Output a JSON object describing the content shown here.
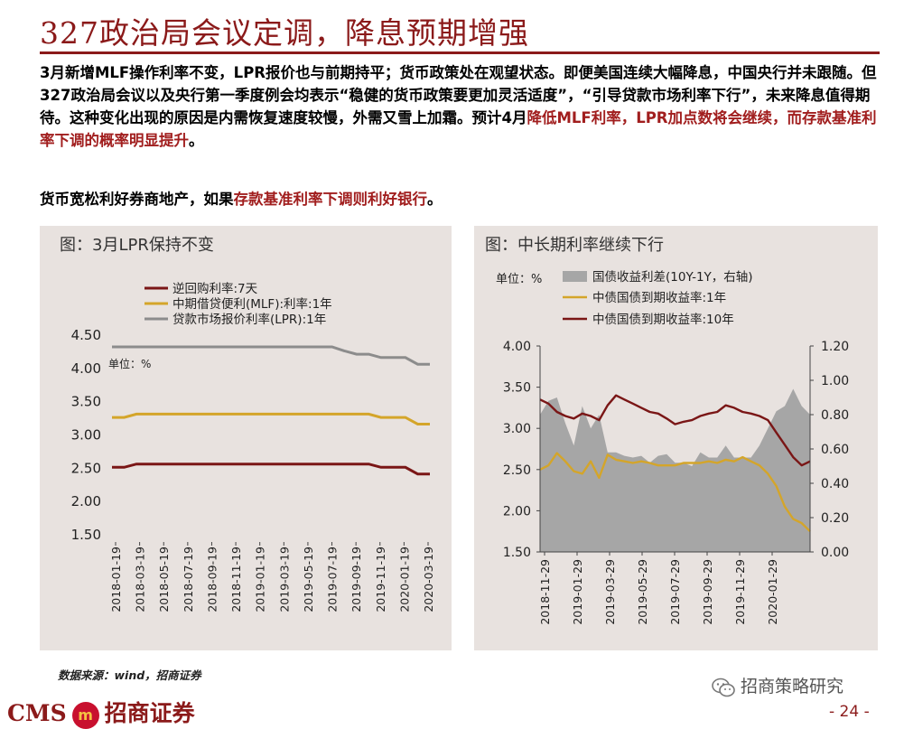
{
  "title": "327政治局会议定调，降息预期增强",
  "paragraph1": [
    {
      "text": "3月新增MLF操作利率不变，LPR报价也与前期持平；货币政策处在观望状态。即便美国连续大幅降息，中国央行并未跟随。但327政治局会议以及央行第一季度例会均表示“稳健的货币政策要更加灵活适度”，“引导贷款市场利率下行”，未来降息值得期待。这种变化出现的原因是内需恢复速度较慢，外需又雪上加霜。预计4月",
      "highlight": false
    },
    {
      "text": "降低MLF利率，LPR加点数将会继续，而存款基准利率下调的概率明显提升",
      "highlight": true
    },
    {
      "text": "。",
      "highlight": false
    }
  ],
  "paragraph2": [
    {
      "text": "货币宽松利好券商地产，如果",
      "highlight": false
    },
    {
      "text": "存款基准利率下调则利好银行",
      "highlight": true
    },
    {
      "text": "。",
      "highlight": false
    }
  ],
  "colors": {
    "dark_red": "#7a1616",
    "gold": "#d4a52a",
    "gray": "#8c8c8c",
    "area": "#a6a6a6",
    "brand": "#8b1a1a"
  },
  "chart_data": [
    {
      "type": "line",
      "panel_title": "图：3月LPR保持不变",
      "unit": "单位：%",
      "x": [
        "2018-01",
        "2018-02",
        "2018-03",
        "2018-04",
        "2018-05",
        "2018-06",
        "2018-07",
        "2018-08",
        "2018-09",
        "2018-10",
        "2018-11",
        "2018-12",
        "2019-01",
        "2019-02",
        "2019-03",
        "2019-04",
        "2019-05",
        "2019-06",
        "2019-07",
        "2019-08",
        "2019-09",
        "2019-10",
        "2019-11",
        "2019-12",
        "2020-01",
        "2020-02",
        "2020-03"
      ],
      "x_ticks": [
        "2018-01-19",
        "2018-03-19",
        "2018-05-19",
        "2018-07-19",
        "2018-09-19",
        "2018-11-19",
        "2019-01-19",
        "2019-03-19",
        "2019-05-19",
        "2019-07-19",
        "2019-09-19",
        "2019-11-19",
        "2020-01-19",
        "2020-03-19"
      ],
      "y_ticks": [
        "1.50",
        "2.00",
        "2.50",
        "3.00",
        "3.50",
        "4.00",
        "4.50"
      ],
      "ylim": [
        1.5,
        4.5
      ],
      "legend_placement": "top-left",
      "series": [
        {
          "name": "逆回购利率:7天",
          "color": "#7a1616",
          "values": [
            2.5,
            2.5,
            2.55,
            2.55,
            2.55,
            2.55,
            2.55,
            2.55,
            2.55,
            2.55,
            2.55,
            2.55,
            2.55,
            2.55,
            2.55,
            2.55,
            2.55,
            2.55,
            2.55,
            2.55,
            2.55,
            2.55,
            2.5,
            2.5,
            2.5,
            2.4,
            2.4
          ]
        },
        {
          "name": "中期借贷便利(MLF):利率:1年",
          "color": "#d4a52a",
          "values": [
            3.25,
            3.25,
            3.3,
            3.3,
            3.3,
            3.3,
            3.3,
            3.3,
            3.3,
            3.3,
            3.3,
            3.3,
            3.3,
            3.3,
            3.3,
            3.3,
            3.3,
            3.3,
            3.3,
            3.3,
            3.3,
            3.3,
            3.25,
            3.25,
            3.25,
            3.15,
            3.15
          ]
        },
        {
          "name": "贷款市场报价利率(LPR):1年",
          "color": "#8c8c8c",
          "values": [
            4.31,
            4.31,
            4.31,
            4.31,
            4.31,
            4.31,
            4.31,
            4.31,
            4.31,
            4.31,
            4.31,
            4.31,
            4.31,
            4.31,
            4.31,
            4.31,
            4.31,
            4.31,
            4.31,
            4.25,
            4.2,
            4.2,
            4.15,
            4.15,
            4.15,
            4.05,
            4.05
          ]
        }
      ]
    },
    {
      "type": "line",
      "panel_title": "图：中长期利率继续下行",
      "unit": "单位：%",
      "x_ticks": [
        "2018-11-29",
        "2019-01-29",
        "2019-03-29",
        "2019-05-29",
        "2019-07-29",
        "2019-09-29",
        "2019-11-29",
        "2020-01-29"
      ],
      "y_left_ticks": [
        "1.50",
        "2.00",
        "2.50",
        "3.00",
        "3.50",
        "4.00"
      ],
      "y_right_ticks": [
        "0.00",
        "0.20",
        "0.40",
        "0.60",
        "0.80",
        "1.00",
        "1.20"
      ],
      "ylim_left": [
        1.5,
        4.0
      ],
      "ylim_right": [
        0.0,
        1.2
      ],
      "legend_placement": "top",
      "x": [
        "2018-11-29",
        "2018-12-15",
        "2019-01-01",
        "2019-01-15",
        "2019-02-01",
        "2019-02-15",
        "2019-03-01",
        "2019-03-15",
        "2019-04-01",
        "2019-04-15",
        "2019-05-01",
        "2019-05-15",
        "2019-06-01",
        "2019-06-15",
        "2019-07-01",
        "2019-07-15",
        "2019-08-01",
        "2019-08-15",
        "2019-09-01",
        "2019-09-15",
        "2019-10-01",
        "2019-10-15",
        "2019-11-01",
        "2019-11-15",
        "2019-12-01",
        "2019-12-15",
        "2020-01-01",
        "2020-01-15",
        "2020-02-01",
        "2020-02-15",
        "2020-03-01",
        "2020-03-15",
        "2020-03-31"
      ],
      "series": [
        {
          "name": "国债收益利差(10Y-1Y，右轴)",
          "color": "#a6a6a6",
          "axis": "right",
          "kind": "area",
          "values": [
            0.8,
            0.88,
            0.9,
            0.75,
            0.62,
            0.85,
            0.72,
            0.8,
            0.58,
            0.58,
            0.56,
            0.55,
            0.56,
            0.52,
            0.56,
            0.57,
            0.52,
            0.52,
            0.5,
            0.58,
            0.55,
            0.55,
            0.62,
            0.55,
            0.55,
            0.55,
            0.62,
            0.72,
            0.82,
            0.85,
            0.95,
            0.85,
            0.8
          ]
        },
        {
          "name": "中债国债到期收益率:1年",
          "color": "#d4a52a",
          "axis": "left",
          "values": [
            2.5,
            2.55,
            2.7,
            2.6,
            2.48,
            2.45,
            2.6,
            2.4,
            2.68,
            2.62,
            2.6,
            2.58,
            2.6,
            2.58,
            2.55,
            2.55,
            2.55,
            2.58,
            2.58,
            2.58,
            2.6,
            2.58,
            2.62,
            2.6,
            2.65,
            2.6,
            2.55,
            2.45,
            2.3,
            2.05,
            1.9,
            1.85,
            1.75
          ]
        },
        {
          "name": "中债国债到期收益率:10年",
          "color": "#7a1616",
          "axis": "left",
          "values": [
            3.35,
            3.3,
            3.2,
            3.15,
            3.12,
            3.18,
            3.15,
            3.1,
            3.28,
            3.4,
            3.35,
            3.3,
            3.25,
            3.2,
            3.18,
            3.12,
            3.05,
            3.08,
            3.1,
            3.15,
            3.18,
            3.2,
            3.28,
            3.25,
            3.2,
            3.18,
            3.15,
            3.1,
            2.95,
            2.8,
            2.65,
            2.55,
            2.6
          ]
        }
      ]
    }
  ],
  "footer": {
    "source": "数据来源：wind，招商证券",
    "wechat": "招商策略研究",
    "logo_text": "CMS",
    "logo_badge": "m",
    "logo_cn": "招商证券",
    "page": "- 24 -"
  }
}
